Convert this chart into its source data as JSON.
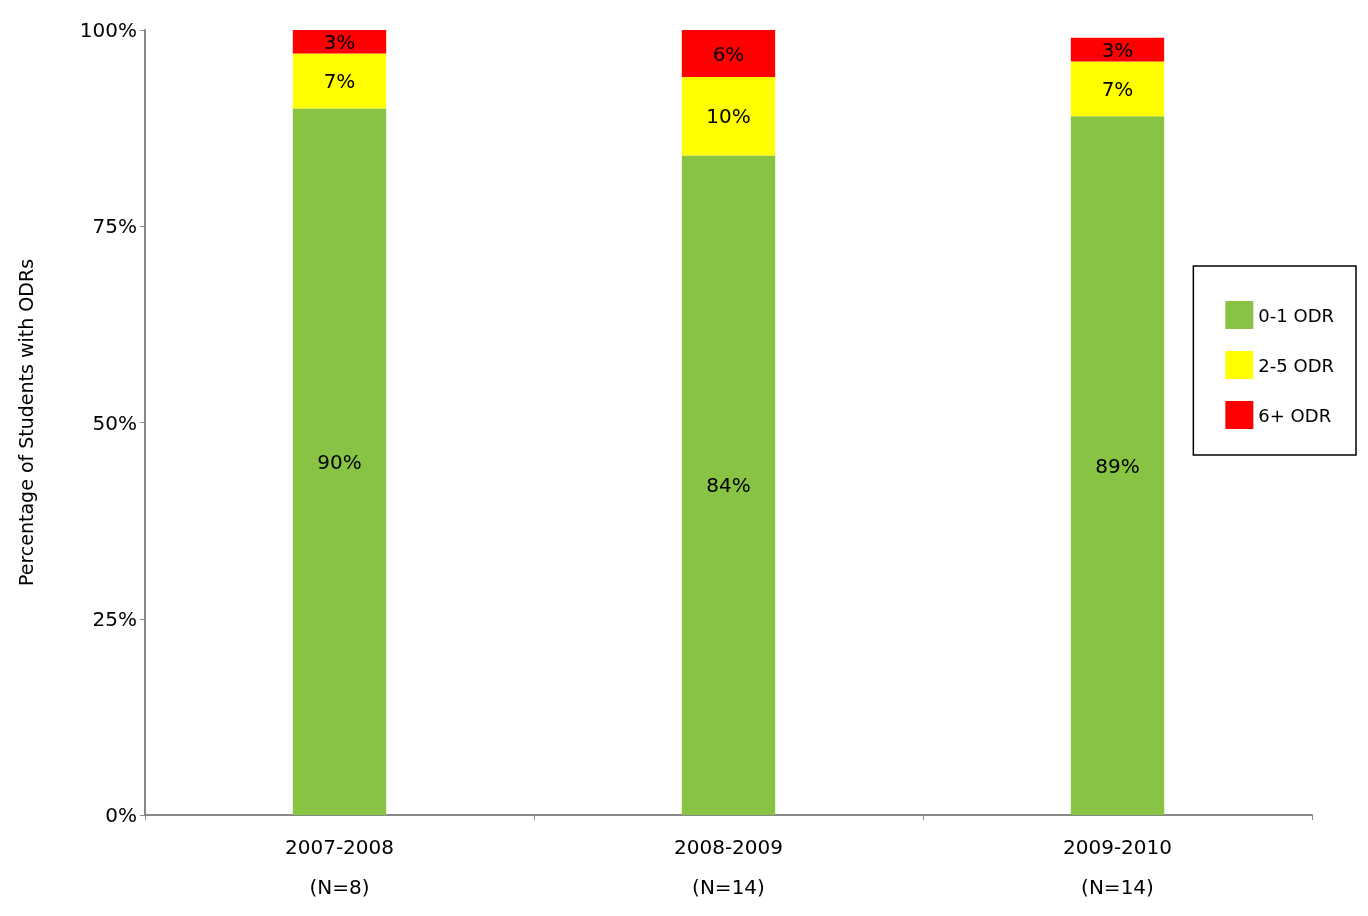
{
  "chart_data": {
    "type": "bar",
    "stacked": true,
    "ylabel": "Percentage of Students with ODRs",
    "categories": [
      "2007-2008\n\n(N=8)",
      "2008-2009\n\n(N=14)",
      "2009-2010\n\n(N=14)"
    ],
    "series": [
      {
        "name": "0-1 ODR",
        "color": "#88c344",
        "values": [
          90,
          84,
          89
        ],
        "value_labels": [
          "90%",
          "84%",
          "89%"
        ]
      },
      {
        "name": "2-5 ODR",
        "color": "#ffff00",
        "values": [
          7,
          10,
          7
        ],
        "value_labels": [
          "7%",
          "10%",
          "7%"
        ]
      },
      {
        "name": "6+ ODR",
        "color": "#ff0000",
        "values": [
          3,
          6,
          3
        ],
        "value_labels": [
          "3%",
          "6%",
          "3%"
        ]
      }
    ],
    "ylim": [
      0,
      100
    ],
    "yticks": [
      {
        "value": 0,
        "label": "0%"
      },
      {
        "value": 25,
        "label": "25%"
      },
      {
        "value": 50,
        "label": "50%"
      },
      {
        "value": 75,
        "label": "75%"
      },
      {
        "value": 100,
        "label": "100%"
      }
    ],
    "grid": false,
    "legend": "right"
  }
}
